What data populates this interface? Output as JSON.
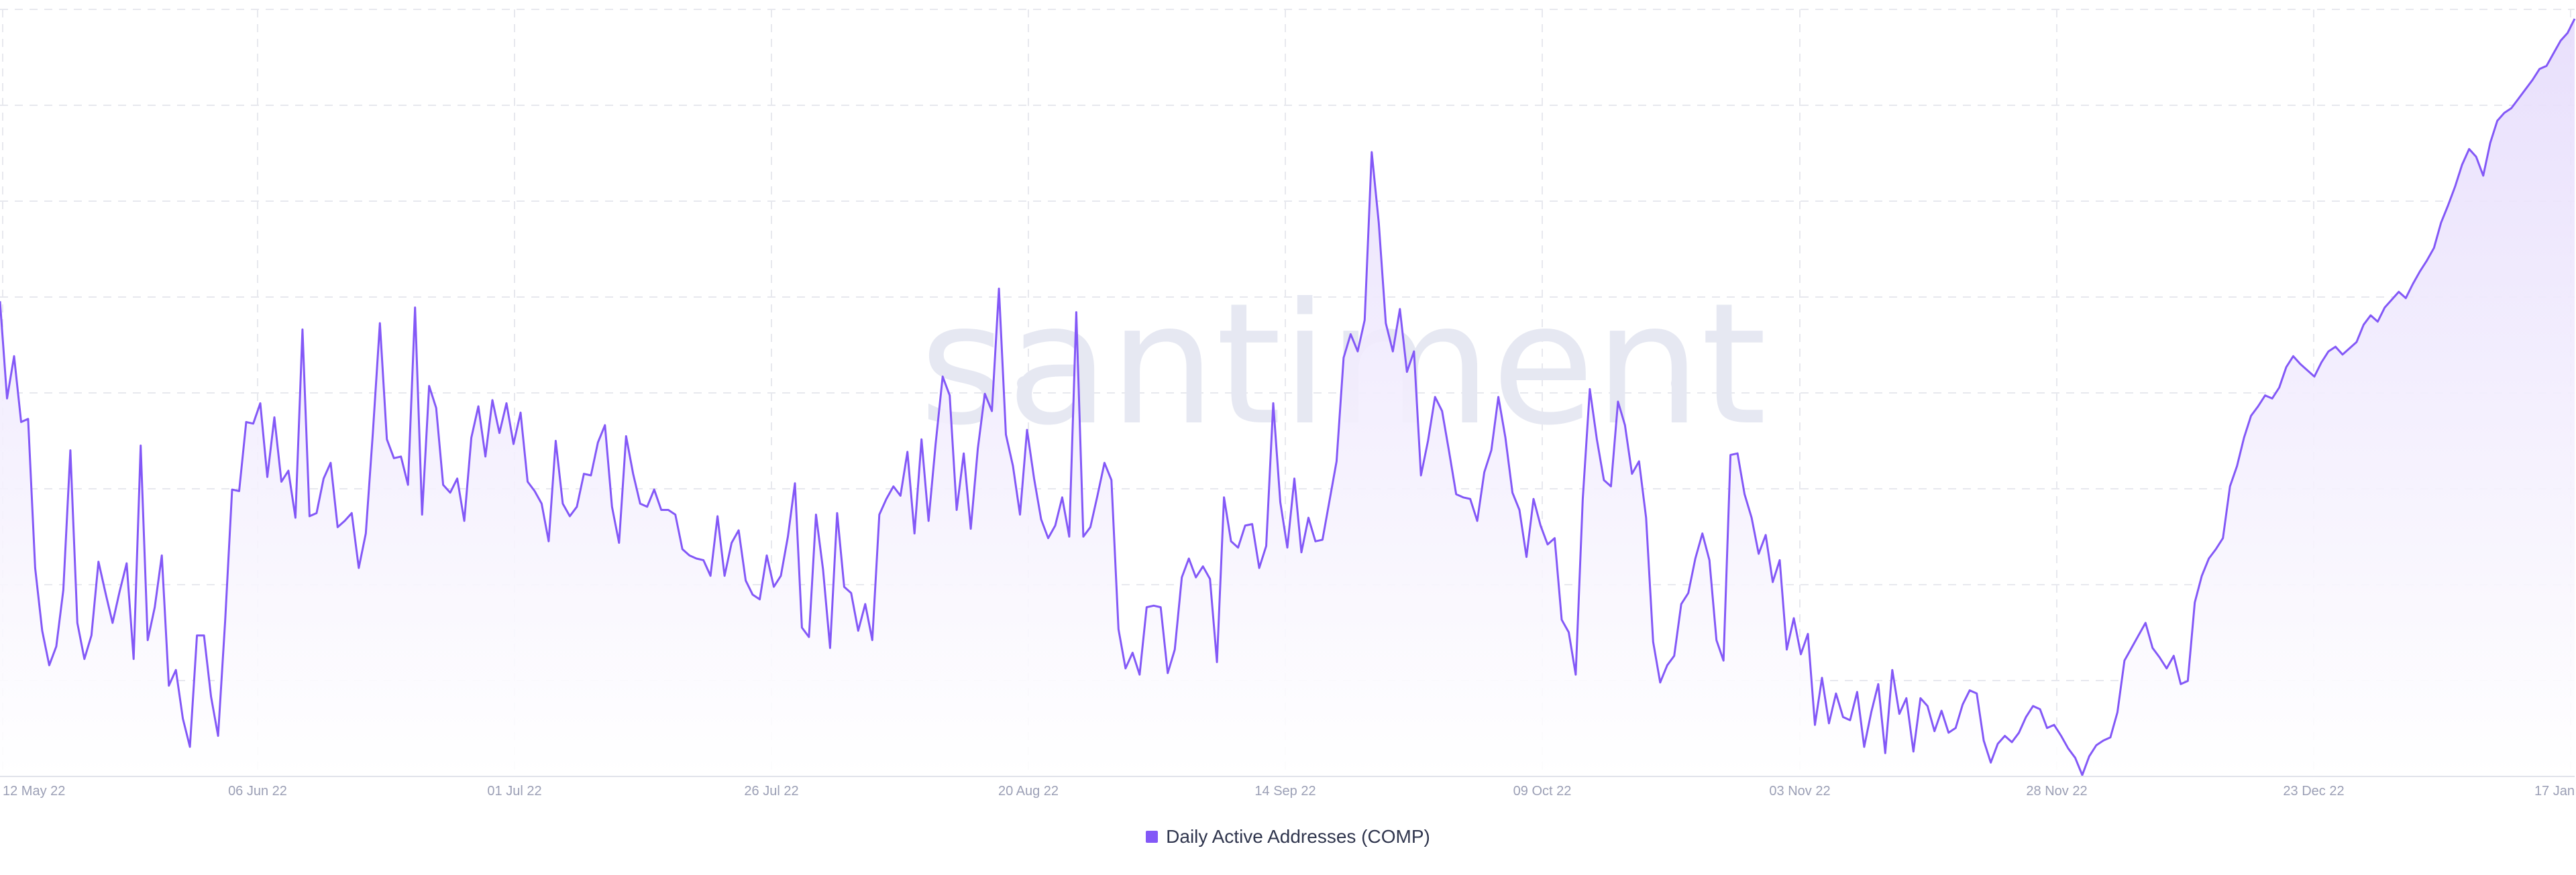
{
  "watermark": "santiment",
  "colors": {
    "line": "#8358f7",
    "fill_top": "#e6dcfc",
    "fill_bottom": "#ffffff",
    "grid": "#e7e8ee",
    "tick_text": "#9b9fb5",
    "watermark": "#e6e8f2",
    "axis": "#e1e3ea"
  },
  "chart_data": {
    "type": "area",
    "title": "",
    "xlabel": "",
    "ylabel": "",
    "x_tick_labels": [
      "12 May 22",
      "06 Jun 22",
      "01 Jul 22",
      "26 Jul 22",
      "20 Aug 22",
      "14 Sep 22",
      "09 Oct 22",
      "03 Nov 22",
      "28 Nov 22",
      "23 Dec 22",
      "17 Jan"
    ],
    "x_start": "2022-05-12",
    "x_end": "2023-01-17",
    "grid": true,
    "y_axis_labels_shown": false,
    "legend_position": "bottom-center",
    "series": [
      {
        "name": "Daily Active Addresses (COMP)",
        "values": [
          210,
          148,
          175,
          133,
          135,
          40,
          0,
          -22,
          -10,
          26,
          115,
          5,
          -18,
          -3,
          44,
          24,
          5,
          25,
          43,
          -18,
          118,
          -6,
          15,
          48,
          -35,
          -25,
          -56,
          -74,
          -3,
          -3,
          -42,
          -67,
          6,
          90,
          89,
          133,
          132,
          145,
          98,
          136,
          95,
          102,
          72,
          192,
          73,
          75,
          97,
          107,
          66,
          70,
          75,
          40,
          62,
          126,
          196,
          122,
          110,
          111,
          93,
          206,
          74,
          156,
          142,
          93,
          88,
          97,
          70,
          123,
          143,
          111,
          147,
          126,
          145,
          119,
          139,
          95,
          89,
          81,
          57,
          121,
          81,
          73,
          79,
          100,
          99,
          120,
          131,
          79,
          56,
          124,
          100,
          81,
          79,
          90,
          77,
          77,
          74,
          52,
          48,
          46,
          45,
          35,
          73,
          35,
          56,
          64,
          32,
          23,
          20,
          48,
          28,
          35,
          60,
          94,
          2,
          -4,
          74,
          39,
          -11,
          75,
          28,
          24,
          0,
          17,
          -6,
          74,
          84,
          92,
          86,
          114,
          62,
          122,
          70,
          119,
          162,
          150,
          77,
          113,
          65,
          116,
          151,
          140,
          218,
          125,
          105,
          74,
          128,
          97,
          71,
          59,
          67,
          85,
          60,
          203,
          60,
          66,
          86,
          107,
          96,
          1,
          -24,
          -14,
          -28,
          15,
          16,
          15,
          -27,
          -12,
          34,
          46,
          34,
          41,
          33,
          -20,
          85,
          57,
          53,
          67,
          68,
          40,
          54,
          145,
          82,
          53,
          97,
          50,
          72,
          57,
          58,
          83,
          108,
          174,
          189,
          178,
          198,
          305,
          260,
          196,
          178,
          205,
          165,
          178,
          99,
          121,
          149,
          140,
          114,
          87,
          85,
          84,
          70,
          101,
          115,
          149,
          123,
          88,
          77,
          47,
          84,
          67,
          55,
          59,
          7,
          -1,
          -28,
          84,
          154,
          122,
          96,
          92,
          146,
          131,
          100,
          108,
          72,
          -7,
          -33,
          -22,
          -16,
          17,
          24,
          46,
          62,
          45,
          -6,
          -19,
          112,
          113,
          87,
          72,
          49,
          61,
          31,
          45,
          -12,
          8,
          -15,
          -2,
          -60,
          -30,
          -59,
          -40,
          -55,
          -57,
          -39,
          -74,
          -52,
          -34,
          -78,
          -25,
          -53,
          -43,
          -77,
          -43,
          -48,
          -64,
          -51,
          -65,
          -62,
          -47,
          -38,
          -40,
          -70,
          -84,
          -72,
          -67,
          -71,
          -65,
          -55,
          -48,
          -50,
          -62,
          -60,
          -67,
          -75,
          -81,
          -92,
          -80,
          -73,
          -70,
          -68,
          -52,
          -19,
          -11,
          -3,
          5,
          -11,
          -17,
          -24,
          -16,
          -34,
          -32,
          18,
          35,
          46,
          52,
          59,
          92,
          105,
          123,
          137,
          143,
          150,
          148,
          155,
          168,
          175,
          170,
          166,
          162,
          171,
          178,
          181,
          176,
          180,
          184,
          195,
          201,
          197,
          206,
          211,
          216,
          212,
          221,
          229,
          236,
          244,
          260,
          271,
          283,
          297,
          307,
          302,
          290,
          311,
          325,
          330,
          333,
          339,
          345,
          351,
          358,
          360,
          368,
          376,
          381,
          390
        ]
      }
    ]
  }
}
